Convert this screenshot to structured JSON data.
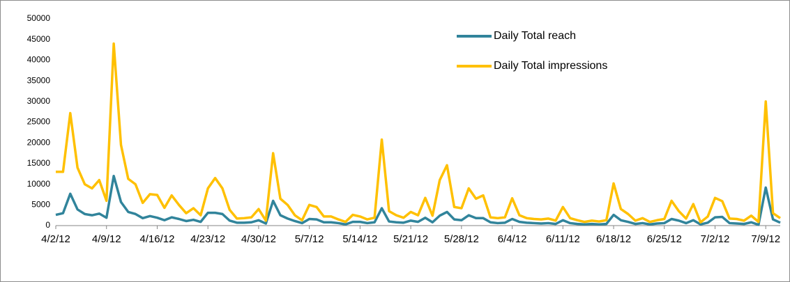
{
  "chart_data": {
    "type": "line",
    "categories": [
      "4/2/12",
      null,
      null,
      null,
      null,
      null,
      null,
      "4/9/12",
      null,
      null,
      null,
      null,
      null,
      null,
      "4/16/12",
      null,
      null,
      null,
      null,
      null,
      null,
      "4/23/12",
      null,
      null,
      null,
      null,
      null,
      null,
      "4/30/12",
      null,
      null,
      null,
      null,
      null,
      null,
      "5/7/12",
      null,
      null,
      null,
      null,
      null,
      null,
      "5/14/12",
      null,
      null,
      null,
      null,
      null,
      null,
      "5/21/12",
      null,
      null,
      null,
      null,
      null,
      null,
      "5/28/12",
      null,
      null,
      null,
      null,
      null,
      null,
      "6/4/12",
      null,
      null,
      null,
      null,
      null,
      null,
      "6/11/12",
      null,
      null,
      null,
      null,
      null,
      null,
      "6/18/12",
      null,
      null,
      null,
      null,
      null,
      null,
      "6/25/12",
      null,
      null,
      null,
      null,
      null,
      null,
      "7/2/12",
      null,
      null,
      null,
      null,
      null,
      null,
      "7/9/12",
      null,
      null
    ],
    "series": [
      {
        "name": "Daily Total reach",
        "color": "#31849b",
        "values": [
          2600,
          3000,
          7700,
          3900,
          2800,
          2500,
          2900,
          1900,
          12000,
          5700,
          3300,
          2800,
          1800,
          2300,
          1900,
          1300,
          2000,
          1600,
          1100,
          1400,
          900,
          3100,
          3100,
          2800,
          1200,
          700,
          700,
          800,
          1300,
          500,
          6000,
          2500,
          1700,
          1100,
          600,
          1600,
          1500,
          800,
          800,
          600,
          300,
          900,
          900,
          600,
          800,
          4200,
          1000,
          800,
          700,
          1200,
          900,
          1900,
          800,
          2400,
          3300,
          1500,
          1300,
          2500,
          1800,
          1800,
          800,
          600,
          700,
          1600,
          900,
          700,
          600,
          500,
          600,
          400,
          1300,
          600,
          400,
          300,
          400,
          300,
          400,
          2600,
          1300,
          900,
          400,
          600,
          300,
          500,
          600,
          1600,
          1200,
          600,
          1300,
          300,
          700,
          2000,
          2100,
          600,
          500,
          400,
          800,
          200,
          9200,
          1500,
          700
        ]
      },
      {
        "name": "Daily Total impressions",
        "color": "#ffc000",
        "values": [
          13000,
          13000,
          27200,
          14000,
          10000,
          9000,
          11000,
          6000,
          44000,
          19500,
          11300,
          10000,
          5500,
          7600,
          7400,
          4300,
          7300,
          5000,
          3000,
          4200,
          2500,
          9000,
          11500,
          9000,
          3800,
          1700,
          1800,
          2000,
          4000,
          1200,
          17500,
          6500,
          5000,
          2500,
          1300,
          5000,
          4500,
          2200,
          2200,
          1500,
          900,
          2600,
          2200,
          1500,
          1900,
          20800,
          3500,
          2500,
          1900,
          3300,
          2500,
          6700,
          2400,
          11000,
          14600,
          4500,
          4200,
          9000,
          6500,
          7300,
          2000,
          1800,
          2000,
          6600,
          2500,
          1800,
          1600,
          1500,
          1700,
          1200,
          4500,
          1800,
          1300,
          900,
          1200,
          1000,
          1300,
          10200,
          4000,
          2800,
          1200,
          1800,
          900,
          1300,
          1600,
          6000,
          3500,
          1700,
          5200,
          800,
          2200,
          6700,
          5900,
          1700,
          1600,
          1200,
          2400,
          900,
          30000,
          3000,
          1800
        ]
      }
    ],
    "ylim": [
      0,
      50000
    ],
    "yticks": [
      0,
      5000,
      10000,
      15000,
      20000,
      25000,
      30000,
      35000,
      40000,
      45000,
      50000
    ],
    "grid": false,
    "legend": "top-right"
  }
}
